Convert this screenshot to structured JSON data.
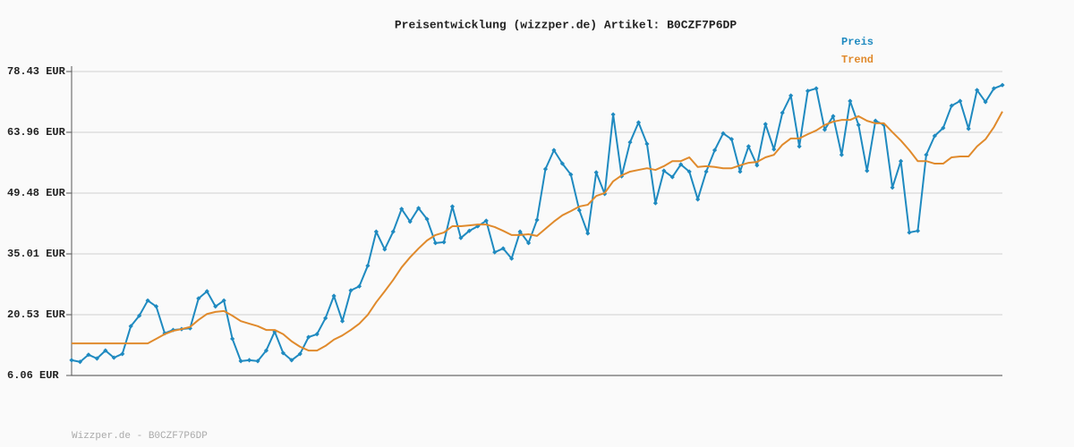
{
  "chart_data": {
    "type": "line",
    "title": "Preisentwicklung (wizzper.de) Artikel: B0CZF7P6DP",
    "categories": [
      null,
      null,
      null,
      null,
      null,
      null,
      null,
      null,
      null,
      null,
      null,
      null,
      null,
      null,
      null,
      null,
      null,
      null,
      null,
      null,
      null,
      null,
      null,
      null,
      null,
      null,
      null,
      null,
      null,
      null,
      null,
      null,
      null,
      null,
      null,
      null,
      null,
      null,
      null,
      null,
      null,
      null,
      null,
      null,
      null,
      null,
      null,
      null,
      null,
      null,
      null,
      null,
      null,
      null,
      null,
      null,
      null,
      null,
      null,
      null,
      null,
      null,
      null,
      null,
      null,
      null,
      null,
      null,
      null,
      null,
      null,
      null,
      null,
      null,
      null,
      null,
      null,
      null,
      null,
      null,
      null,
      null,
      null,
      null,
      null,
      null,
      null,
      null,
      null,
      null,
      null,
      null,
      null,
      null,
      null,
      null,
      null,
      null,
      null,
      null,
      null,
      null,
      null,
      null,
      null,
      null,
      null,
      null,
      null,
      null,
      null
    ],
    "series": [
      {
        "name": "Preis",
        "color": "#1f8ac0",
        "markers": true,
        "values": [
          9.7,
          9.3,
          11.0,
          10.1,
          12.0,
          10.3,
          11.2,
          17.8,
          20.3,
          23.9,
          22.5,
          16.1,
          16.9,
          17.1,
          17.3,
          24.4,
          26.1,
          22.5,
          23.9,
          14.8,
          9.5,
          9.7,
          9.5,
          12.0,
          16.5,
          11.4,
          9.7,
          11.2,
          15.2,
          15.9,
          19.7,
          25.0,
          19.0,
          26.3,
          27.3,
          32.2,
          40.3,
          36.1,
          40.3,
          45.7,
          42.7,
          45.9,
          43.3,
          37.6,
          37.8,
          46.3,
          38.8,
          40.5,
          41.6,
          42.9,
          35.4,
          36.3,
          33.9,
          40.3,
          37.6,
          43.1,
          55.2,
          59.7,
          56.5,
          53.9,
          45.4,
          39.9,
          54.4,
          49.3,
          68.2,
          53.5,
          61.6,
          66.3,
          61.2,
          47.1,
          54.8,
          53.3,
          56.3,
          54.6,
          48.0,
          54.6,
          59.7,
          63.7,
          62.3,
          54.6,
          60.6,
          56.1,
          65.9,
          59.9,
          68.6,
          72.7,
          60.6,
          73.8,
          74.4,
          64.6,
          67.8,
          58.6,
          71.4,
          65.7,
          54.8,
          66.7,
          65.7,
          50.8,
          57.1,
          40.1,
          40.5,
          58.6,
          63.1,
          65.0,
          70.3,
          71.4,
          64.8,
          74.0,
          71.2,
          74.4,
          75.2
        ]
      },
      {
        "name": "Trend",
        "color": "#e08a2c",
        "markers": false,
        "values": [
          13.7,
          13.7,
          13.7,
          13.7,
          13.7,
          13.7,
          13.7,
          13.7,
          13.7,
          13.7,
          14.8,
          15.9,
          16.7,
          17.1,
          17.6,
          19.3,
          20.7,
          21.2,
          21.4,
          20.3,
          19.0,
          18.4,
          17.8,
          16.9,
          16.9,
          15.9,
          14.2,
          12.9,
          12.0,
          12.0,
          13.1,
          14.6,
          15.6,
          16.9,
          18.4,
          20.5,
          23.5,
          26.1,
          28.8,
          31.8,
          34.2,
          36.3,
          38.2,
          39.5,
          40.1,
          41.6,
          41.6,
          41.8,
          42.0,
          42.0,
          41.4,
          40.5,
          39.5,
          39.5,
          39.7,
          39.3,
          41.0,
          42.7,
          44.2,
          45.2,
          46.3,
          46.7,
          48.8,
          49.5,
          52.3,
          53.7,
          54.6,
          55.0,
          55.4,
          55.0,
          55.9,
          57.1,
          57.1,
          58.0,
          55.7,
          55.9,
          55.7,
          55.4,
          55.4,
          56.1,
          56.7,
          56.9,
          58.0,
          58.6,
          61.0,
          62.5,
          62.5,
          63.5,
          64.4,
          65.7,
          66.5,
          66.9,
          66.9,
          67.8,
          66.7,
          66.1,
          66.1,
          64.0,
          62.0,
          59.7,
          57.1,
          57.1,
          56.5,
          56.5,
          58.0,
          58.2,
          58.2,
          60.6,
          62.3,
          65.2,
          68.9
        ]
      }
    ],
    "ylim": [
      6.06,
      78.43
    ],
    "yticks": [
      {
        "value": 6.06,
        "label": "6.06 EUR"
      },
      {
        "value": 20.53,
        "label": "20.53 EUR"
      },
      {
        "value": 35.01,
        "label": "35.01 EUR"
      },
      {
        "value": 49.48,
        "label": "49.48 EUR"
      },
      {
        "value": 63.96,
        "label": "63.96 EUR"
      },
      {
        "value": 78.43,
        "label": "78.43 EUR"
      }
    ],
    "grid": true,
    "legend": "top-right",
    "footer": "Wizzper.de - B0CZF7P6DP"
  }
}
